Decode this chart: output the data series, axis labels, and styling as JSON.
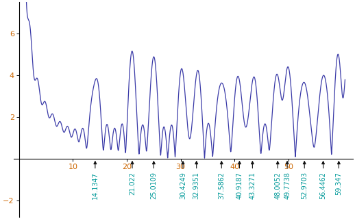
{
  "zeta_zeros": [
    14.1347,
    21.022,
    25.0109,
    30.4249,
    32.9351,
    37.5862,
    40.9187,
    43.3271,
    48.0052,
    49.7738,
    52.9703,
    56.4462,
    59.347
  ],
  "x_start": 0.01,
  "x_end": 60.5,
  "num_points": 4000,
  "line_color": "#3b3ba8",
  "line_width": 0.9,
  "xlim": [
    -1,
    62
  ],
  "ylim": [
    -2.8,
    7.5
  ],
  "xticks": [
    10,
    20,
    30,
    40,
    50
  ],
  "yticks": [
    2,
    4,
    6
  ],
  "yticks_neg": [
    -2
  ],
  "arrow_color": "#111111",
  "arrow_label_color": "#009999",
  "arrow_label_fontsize": 7.0,
  "background_color": "#ffffff",
  "figsize": [
    5.18,
    3.2
  ],
  "dpi": 100,
  "N_terms": 150
}
